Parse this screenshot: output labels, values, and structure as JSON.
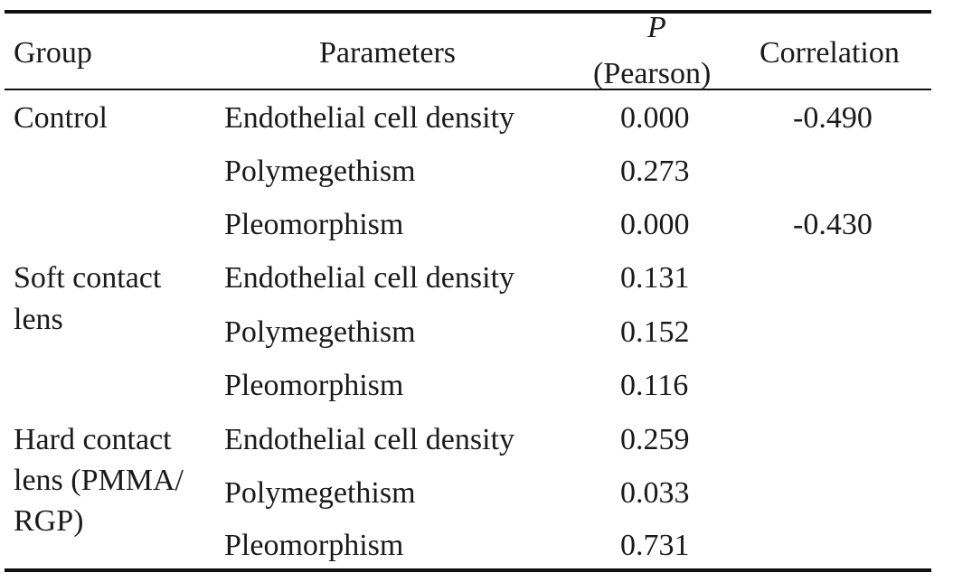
{
  "table": {
    "headers": {
      "group": "Group",
      "parameters": "Parameters",
      "p_symbol": "P",
      "p_method": "(Pearson)",
      "correlation": "Correlation"
    },
    "groups": [
      {
        "lines": [
          "Control"
        ]
      },
      {
        "lines": [
          "Soft contact",
          "lens"
        ]
      },
      {
        "lines": [
          "Hard contact",
          "lens (PMMA/",
          "RGP)"
        ]
      }
    ],
    "rows": [
      {
        "parameter": "Endothelial cell density",
        "p": "0.000",
        "correlation": "-0.490"
      },
      {
        "parameter": "Polymegethism",
        "p": "0.273",
        "correlation": ""
      },
      {
        "parameter": "Pleomorphism",
        "p": "0.000",
        "correlation": "-0.430"
      },
      {
        "parameter": "Endothelial cell density",
        "p": "0.131",
        "correlation": ""
      },
      {
        "parameter": "Polymegethism",
        "p": "0.152",
        "correlation": ""
      },
      {
        "parameter": "Pleomorphism",
        "p": "0.116",
        "correlation": ""
      },
      {
        "parameter": "Endothelial cell density",
        "p": "0.259",
        "correlation": ""
      },
      {
        "parameter": "Polymegethism",
        "p": "0.033",
        "correlation": ""
      },
      {
        "parameter": "Pleomorphism",
        "p": "0.731",
        "correlation": ""
      }
    ]
  }
}
